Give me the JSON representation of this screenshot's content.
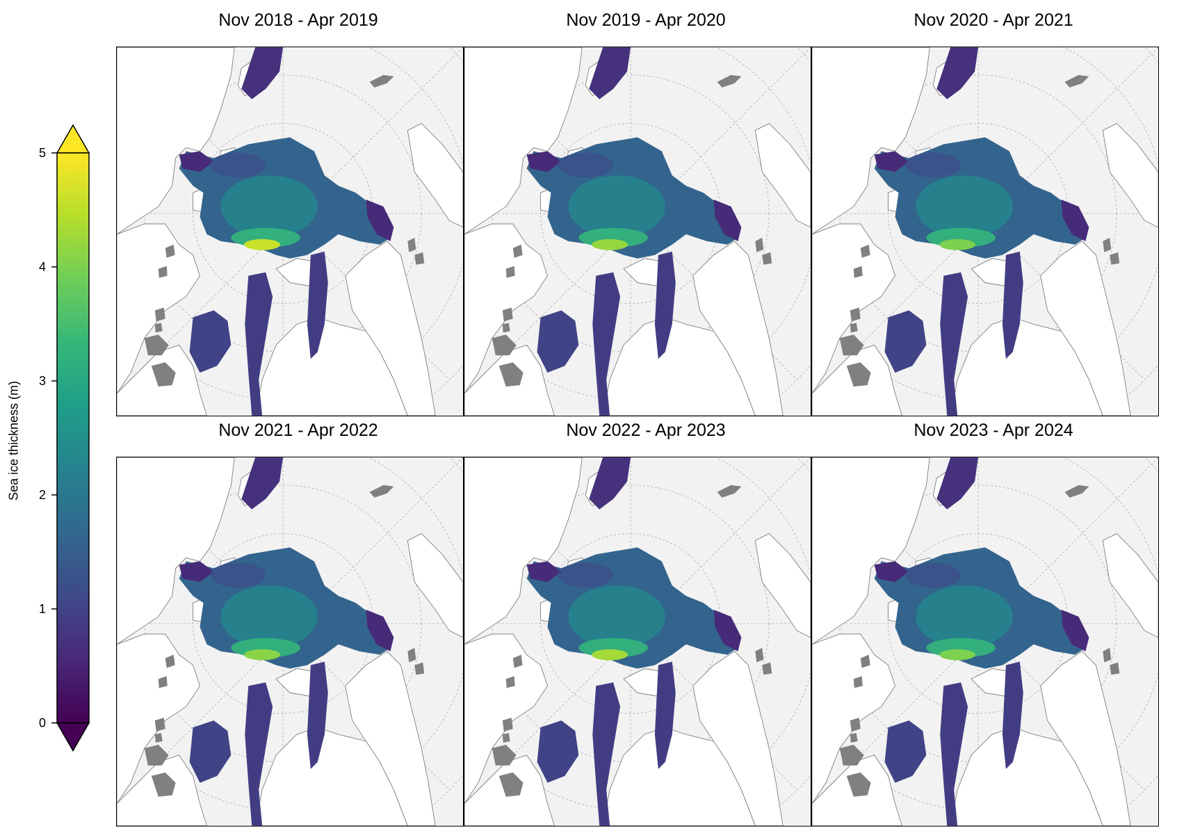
{
  "panels": [
    {
      "title": "Nov 2018 - Apr 2019",
      "thickness_hotspot": 4.6
    },
    {
      "title": "Nov 2019 - Apr 2020",
      "thickness_hotspot": 4.2
    },
    {
      "title": "Nov 2020 - Apr 2021",
      "thickness_hotspot": 4.0
    },
    {
      "title": "Nov 2021 - Apr 2022",
      "thickness_hotspot": 4.1
    },
    {
      "title": "Nov 2022 - Apr 2023",
      "thickness_hotspot": 4.3
    },
    {
      "title": "Nov 2023 - Apr 2024",
      "thickness_hotspot": 4.0
    }
  ],
  "colorbar": {
    "label": "Sea ice thickness (m)",
    "ticks": [
      "0",
      "1",
      "2",
      "3",
      "4",
      "5"
    ],
    "min": 0,
    "max": 5,
    "extend": "both",
    "colormap": "viridis",
    "colors": [
      "#440154",
      "#482878",
      "#3e4a89",
      "#31688e",
      "#26828e",
      "#1f9e89",
      "#35b779",
      "#6ece58",
      "#b5de2b",
      "#fde725"
    ]
  },
  "map_colors": {
    "land": "#ffffff",
    "ocean": "#f2f2f2",
    "ice_sheet_islands": "#808080",
    "coastline": "#707070",
    "graticule": "#aaaaaa"
  }
}
